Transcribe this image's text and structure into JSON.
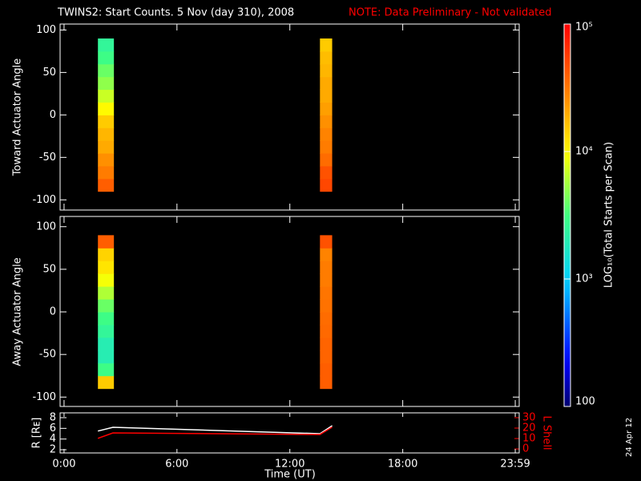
{
  "title": "TWINS2: Start Counts.  5 Nov (day 310), 2008",
  "note": "NOTE: Data Preliminary - Not validated",
  "date_stamp": "24 Apr 12",
  "chart_data": [
    {
      "type": "heatmap",
      "ylabel": "Toward Actuator Angle",
      "xlim": [
        -0.21,
        24.19
      ],
      "xticks": [
        0,
        6,
        12,
        18,
        23.98
      ],
      "ylim": [
        -112,
        107
      ],
      "yticks": [
        -100,
        -50,
        0,
        50,
        100
      ],
      "time_bins": [
        [
          1.8,
          2.65
        ],
        [
          13.6,
          14.25
        ]
      ],
      "angle_bins": [
        -90,
        -75,
        -60,
        -45,
        -30,
        -15,
        0,
        15,
        30,
        45,
        60,
        75,
        90
      ],
      "values": [
        [
          40000,
          30000,
          25000,
          20000,
          18000,
          15000,
          10000,
          7000,
          5000,
          4000,
          3000,
          2500
        ],
        [
          50000,
          45000,
          35000,
          30000,
          28000,
          25000,
          22000,
          20000,
          20000,
          18000,
          17000,
          15000
        ]
      ],
      "colorbar": {
        "label": "LOG₁₀(Total Starts per Scan)",
        "lim": [
          100,
          100000
        ],
        "log": true,
        "ticks": [
          100,
          {
            "value": 1000,
            "label": "10³"
          },
          {
            "value": 10000,
            "label": "10⁴"
          },
          {
            "value": 100000,
            "label": "10⁵"
          }
        ]
      }
    },
    {
      "type": "heatmap",
      "ylabel": "Away Actuator Angle",
      "xlim": [
        -0.21,
        24.19
      ],
      "xticks": [
        0,
        6,
        12,
        18,
        23.98
      ],
      "ylim": [
        -111,
        112
      ],
      "yticks": [
        -100,
        -50,
        0,
        50,
        100
      ],
      "time_bins": [
        [
          1.8,
          2.65
        ],
        [
          13.6,
          14.25
        ]
      ],
      "angle_bins": [
        -90,
        -75,
        -60,
        -45,
        -30,
        -15,
        0,
        15,
        30,
        45,
        60,
        75,
        90
      ],
      "values": [
        [
          15000,
          3000,
          2000,
          2000,
          2500,
          3000,
          4000,
          6000,
          9000,
          12000,
          14000,
          40000
        ],
        [
          40000,
          40000,
          38000,
          38000,
          36000,
          35000,
          33000,
          32000,
          30000,
          30000,
          28000,
          45000
        ]
      ]
    },
    {
      "type": "line",
      "ylabel": "R [Rᴇ]",
      "y2label": "L Shell",
      "xlabel": "Time (UT)",
      "xlim": [
        -0.21,
        24.19
      ],
      "xticks": [
        {
          "value": 0,
          "label": "0:00"
        },
        {
          "value": 6,
          "label": "6:00"
        },
        {
          "value": 12,
          "label": "12:00"
        },
        {
          "value": 18,
          "label": "18:00"
        },
        {
          "value": 23.98,
          "label": "23:59"
        }
      ],
      "ylim": [
        1.4,
        8.9
      ],
      "yticks": [
        2,
        4,
        6,
        8
      ],
      "y2lim": [
        -3.8,
        34.6
      ],
      "y2ticks": [
        0,
        10,
        20,
        30
      ],
      "y2color": "#ff0000",
      "x": [
        1.8,
        2.6,
        13.6,
        14.25
      ],
      "series": [
        {
          "color": "#ffffff",
          "values": [
            5.5,
            6.2,
            5.0,
            6.5
          ]
        },
        {
          "color": "#ff0000",
          "axis": "y2",
          "values": [
            10.2,
            15.4,
            13.9,
            21
          ]
        }
      ]
    }
  ]
}
